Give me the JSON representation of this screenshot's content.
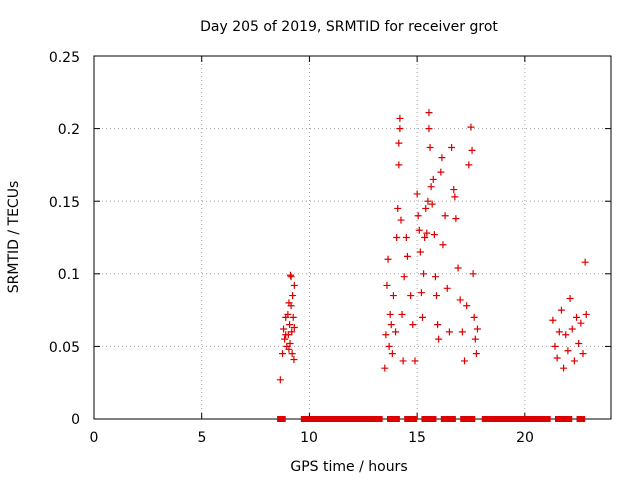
{
  "chart_data": {
    "type": "scatter",
    "title": "Day 205 of 2019, SRMTID for receiver grot",
    "xlabel": "GPS time / hours",
    "ylabel": "SRMTID / TECUs",
    "xlim": [
      0,
      24
    ],
    "ylim": [
      0,
      0.25
    ],
    "xticks": [
      "0",
      "5",
      "10",
      "15",
      "20"
    ],
    "yticks": [
      "0",
      "0.05",
      "0.1",
      "0.15",
      "0.2",
      "0.25"
    ],
    "grid": true,
    "marker": "+",
    "color": "#dd0000",
    "series": [
      {
        "name": "SRMTID",
        "points": [
          [
            8.65,
            0.027
          ],
          [
            8.75,
            0.045
          ],
          [
            8.8,
            0.062
          ],
          [
            8.85,
            0.055
          ],
          [
            8.9,
            0.07
          ],
          [
            8.95,
            0.05
          ],
          [
            9.0,
            0.072
          ],
          [
            9.02,
            0.058
          ],
          [
            9.05,
            0.08
          ],
          [
            9.08,
            0.065
          ],
          [
            9.1,
            0.052
          ],
          [
            9.12,
            0.099
          ],
          [
            9.15,
            0.078
          ],
          [
            9.18,
            0.06
          ],
          [
            9.2,
            0.045
          ],
          [
            9.22,
            0.085
          ],
          [
            9.25,
            0.07
          ],
          [
            9.28,
            0.041
          ],
          [
            9.3,
            0.092
          ],
          [
            9.3,
            0.063
          ],
          [
            9.05,
            0.048
          ],
          [
            8.9,
            0.058
          ],
          [
            9.15,
            0.098
          ],
          [
            13.5,
            0.035
          ],
          [
            13.55,
            0.058
          ],
          [
            13.6,
            0.092
          ],
          [
            13.65,
            0.11
          ],
          [
            13.7,
            0.05
          ],
          [
            13.75,
            0.072
          ],
          [
            13.8,
            0.065
          ],
          [
            13.85,
            0.045
          ],
          [
            13.9,
            0.085
          ],
          [
            14.0,
            0.06
          ],
          [
            14.05,
            0.125
          ],
          [
            14.1,
            0.145
          ],
          [
            14.15,
            0.175
          ],
          [
            14.15,
            0.19
          ],
          [
            14.2,
            0.207
          ],
          [
            14.2,
            0.2
          ],
          [
            14.25,
            0.137
          ],
          [
            14.3,
            0.072
          ],
          [
            14.35,
            0.04
          ],
          [
            14.4,
            0.098
          ],
          [
            14.5,
            0.125
          ],
          [
            14.55,
            0.112
          ],
          [
            14.7,
            0.085
          ],
          [
            14.8,
            0.065
          ],
          [
            14.9,
            0.04
          ],
          [
            15.0,
            0.155
          ],
          [
            15.05,
            0.14
          ],
          [
            15.1,
            0.13
          ],
          [
            15.15,
            0.115
          ],
          [
            15.2,
            0.087
          ],
          [
            15.25,
            0.07
          ],
          [
            15.3,
            0.1
          ],
          [
            15.35,
            0.125
          ],
          [
            15.4,
            0.145
          ],
          [
            15.45,
            0.128
          ],
          [
            15.5,
            0.15
          ],
          [
            15.55,
            0.211
          ],
          [
            15.55,
            0.2
          ],
          [
            15.6,
            0.187
          ],
          [
            15.65,
            0.16
          ],
          [
            15.7,
            0.148
          ],
          [
            15.75,
            0.165
          ],
          [
            15.8,
            0.127
          ],
          [
            15.85,
            0.098
          ],
          [
            15.9,
            0.085
          ],
          [
            15.95,
            0.065
          ],
          [
            16.0,
            0.055
          ],
          [
            16.1,
            0.17
          ],
          [
            16.15,
            0.18
          ],
          [
            16.2,
            0.12
          ],
          [
            16.3,
            0.14
          ],
          [
            16.4,
            0.09
          ],
          [
            16.5,
            0.06
          ],
          [
            16.6,
            0.187
          ],
          [
            16.7,
            0.158
          ],
          [
            16.75,
            0.153
          ],
          [
            16.8,
            0.138
          ],
          [
            16.9,
            0.104
          ],
          [
            17.0,
            0.082
          ],
          [
            17.1,
            0.06
          ],
          [
            17.2,
            0.04
          ],
          [
            17.3,
            0.078
          ],
          [
            17.4,
            0.175
          ],
          [
            17.5,
            0.201
          ],
          [
            17.55,
            0.185
          ],
          [
            17.6,
            0.1
          ],
          [
            17.65,
            0.07
          ],
          [
            17.7,
            0.055
          ],
          [
            17.75,
            0.045
          ],
          [
            17.8,
            0.062
          ],
          [
            21.3,
            0.068
          ],
          [
            21.4,
            0.05
          ],
          [
            21.5,
            0.042
          ],
          [
            21.6,
            0.06
          ],
          [
            21.7,
            0.075
          ],
          [
            21.8,
            0.035
          ],
          [
            21.9,
            0.058
          ],
          [
            22.0,
            0.047
          ],
          [
            22.1,
            0.083
          ],
          [
            22.2,
            0.062
          ],
          [
            22.3,
            0.04
          ],
          [
            22.4,
            0.07
          ],
          [
            22.5,
            0.052
          ],
          [
            22.6,
            0.066
          ],
          [
            22.7,
            0.045
          ],
          [
            22.8,
            0.108
          ],
          [
            22.85,
            0.072
          ]
        ]
      }
    ],
    "zero_runs": [
      [
        8.5,
        8.9
      ],
      [
        9.6,
        13.4
      ],
      [
        13.6,
        14.2
      ],
      [
        14.4,
        15.0
      ],
      [
        15.2,
        15.9
      ],
      [
        16.1,
        16.8
      ],
      [
        17.0,
        17.7
      ],
      [
        18.0,
        21.2
      ],
      [
        21.4,
        22.2
      ],
      [
        22.4,
        22.8
      ]
    ]
  }
}
